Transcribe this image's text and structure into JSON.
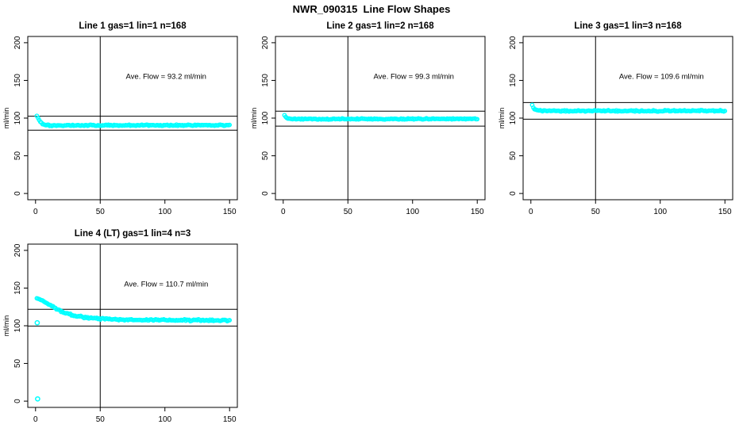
{
  "page_title": "NWR_090315  Line Flow Shapes",
  "colors": {
    "point": "#00FFFF",
    "axis": "#000000",
    "background": "#FFFFFF",
    "text": "#000000"
  },
  "axes": {
    "xlim": [
      0,
      150
    ],
    "ylim": [
      0,
      200
    ],
    "x_ticks": [
      0,
      50,
      100,
      150
    ],
    "y_ticks": [
      0,
      50,
      100,
      150,
      200
    ],
    "y_label": "ml/min",
    "vline_x": 50,
    "grid": false
  },
  "chart_data": [
    {
      "type": "scatter",
      "title": "Line 1 gas=1 lin=1 n=168",
      "annotation": "Ave. Flow =  93.2  ml/min",
      "ave_flow_ml_min": 93.2,
      "n": 168,
      "n_points": 168,
      "ref_lines": [
        102.5,
        83.9
      ],
      "profile": [
        [
          1,
          103
        ],
        [
          1.8,
          100.5
        ],
        [
          2.5,
          98
        ],
        [
          3.5,
          95.5
        ],
        [
          5,
          93
        ],
        [
          7,
          91.5
        ],
        [
          10,
          90.6
        ],
        [
          15,
          90.2
        ],
        [
          30,
          90.3
        ],
        [
          60,
          90.4
        ],
        [
          100,
          90.6
        ],
        [
          150,
          90.7
        ]
      ],
      "noise": 0.8,
      "outliers": [],
      "seed": 101
    },
    {
      "type": "scatter",
      "title": "Line 2 gas=1 lin=2 n=168",
      "annotation": "Ave. Flow =  99.3  ml/min",
      "ave_flow_ml_min": 99.3,
      "n": 168,
      "n_points": 168,
      "ref_lines": [
        109.2,
        89.4
      ],
      "profile": [
        [
          1,
          104
        ],
        [
          2,
          101.5
        ],
        [
          3,
          100
        ],
        [
          5,
          99.2
        ],
        [
          8,
          98.8
        ],
        [
          15,
          98.6
        ],
        [
          50,
          98.7
        ],
        [
          100,
          98.9
        ],
        [
          150,
          99.0
        ]
      ],
      "noise": 0.7,
      "outliers": [],
      "seed": 202
    },
    {
      "type": "scatter",
      "title": "Line 3 gas=1 lin=3 n=168",
      "annotation": "Ave. Flow =  109.6  ml/min",
      "ave_flow_ml_min": 109.6,
      "n": 168,
      "n_points": 168,
      "ref_lines": [
        120.6,
        98.6
      ],
      "profile": [
        [
          1,
          117
        ],
        [
          2,
          113.5
        ],
        [
          3,
          111.8
        ],
        [
          5,
          110.5
        ],
        [
          8,
          109.8
        ],
        [
          15,
          109.4
        ],
        [
          60,
          109.5
        ],
        [
          150,
          109.6
        ]
      ],
      "noise": 0.8,
      "outliers": [],
      "seed": 303
    },
    {
      "type": "scatter",
      "title": "Line 4 (LT) gas=1 lin=4 n=3",
      "annotation": "Ave. Flow =  110.7  ml/min",
      "ave_flow_ml_min": 110.7,
      "n": 3,
      "n_points": 168,
      "ref_lines": [
        121.8,
        99.6
      ],
      "profile": [
        [
          1,
          136.5
        ],
        [
          3,
          135.5
        ],
        [
          5,
          133.5
        ],
        [
          8,
          130.5
        ],
        [
          11,
          127.5
        ],
        [
          14,
          124.5
        ],
        [
          17,
          121.5
        ],
        [
          20,
          119
        ],
        [
          24,
          116.5
        ],
        [
          28,
          114.5
        ],
        [
          33,
          112.5
        ],
        [
          38,
          111
        ],
        [
          44,
          110
        ],
        [
          52,
          109
        ],
        [
          62,
          108.3
        ],
        [
          75,
          107.8
        ],
        [
          100,
          107.5
        ],
        [
          125,
          107.3
        ],
        [
          150,
          107.2
        ]
      ],
      "noise": 1.0,
      "outliers": [
        [
          1.3,
          104
        ],
        [
          1.6,
          3
        ]
      ],
      "seed": 404
    }
  ]
}
